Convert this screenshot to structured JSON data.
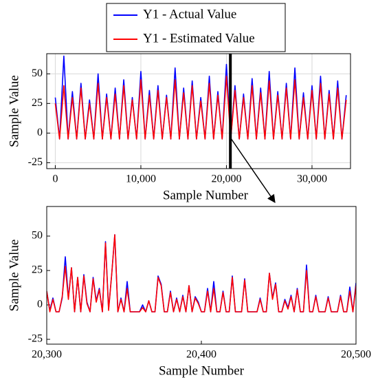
{
  "chart_data": [
    {
      "type": "line",
      "x_label": "Sample Number",
      "y_label": "Sample Value",
      "grid": true,
      "legend": "top",
      "xlim": [
        -1000,
        34500
      ],
      "xticks": [
        0,
        {
          "value": 10000,
          "label": "10,000"
        },
        {
          "value": 20000,
          "label": "20,000"
        },
        {
          "value": 30000,
          "label": "30,000"
        }
      ],
      "ylim": [
        -30,
        67
      ],
      "yticks": [
        -25,
        0,
        25,
        50
      ],
      "x": [
        0,
        500,
        1000,
        1500,
        2000,
        2500,
        3000,
        3500,
        4000,
        4500,
        5000,
        5500,
        6000,
        6500,
        7000,
        7500,
        8000,
        8500,
        9000,
        9500,
        10000,
        10500,
        11000,
        11500,
        12000,
        12500,
        13000,
        13500,
        14000,
        14500,
        15000,
        15500,
        16000,
        16500,
        17000,
        17500,
        18000,
        18500,
        19000,
        19500,
        20000,
        20500,
        21000,
        21500,
        22000,
        22500,
        23000,
        23500,
        24000,
        24500,
        25000,
        25500,
        26000,
        26500,
        27000,
        27500,
        28000,
        28500,
        29000,
        29500,
        30000,
        30500,
        31000,
        31500,
        32000,
        32500,
        33000,
        33500,
        34000
      ],
      "series": [
        {
          "name": "Y1 - Actual Value",
          "color": "#0000ff",
          "values": [
            30,
            -5,
            65,
            -5,
            35,
            -5,
            42,
            -5,
            28,
            -5,
            50,
            -5,
            33,
            -5,
            38,
            -5,
            45,
            -5,
            30,
            -5,
            52,
            -5,
            36,
            -5,
            40,
            -5,
            32,
            -5,
            55,
            -5,
            38,
            -5,
            44,
            -5,
            30,
            -5,
            48,
            -5,
            35,
            -5,
            58,
            -5,
            40,
            -5,
            33,
            -5,
            46,
            -5,
            38,
            -5,
            52,
            -5,
            35,
            -5,
            42,
            -5,
            55,
            -5,
            34,
            -5,
            40,
            -5,
            48,
            -5,
            36,
            -5,
            44,
            -5,
            32
          ]
        },
        {
          "name": "Y1 - Estimated Value",
          "color": "#ff0000",
          "values": [
            25,
            -5,
            40,
            -5,
            30,
            -5,
            38,
            -5,
            25,
            -5,
            42,
            -5,
            30,
            -5,
            33,
            -5,
            40,
            -5,
            28,
            -5,
            45,
            -5,
            32,
            -5,
            36,
            -5,
            30,
            -5,
            45,
            -5,
            34,
            -5,
            40,
            -5,
            27,
            -5,
            42,
            -5,
            32,
            -5,
            48,
            -5,
            36,
            -5,
            30,
            -5,
            40,
            -5,
            34,
            -5,
            44,
            -5,
            32,
            -5,
            38,
            -5,
            45,
            -5,
            30,
            -5,
            36,
            -5,
            42,
            -5,
            33,
            -5,
            38,
            -5,
            28
          ]
        }
      ]
    },
    {
      "type": "line",
      "x_label": "Sample Number",
      "y_label": "Sample Value",
      "grid": false,
      "xlim": [
        20300,
        20500
      ],
      "xticks": [
        {
          "value": 20300,
          "label": "20,300"
        },
        {
          "value": 20400,
          "label": "20,400"
        },
        {
          "value": 20500,
          "label": "20,500"
        }
      ],
      "ylim": [
        -28.5,
        71.5
      ],
      "yticks": [
        -25,
        0,
        25,
        50
      ],
      "x": [
        20300,
        20302,
        20304,
        20306,
        20308,
        20310,
        20312,
        20314,
        20316,
        20318,
        20320,
        20322,
        20324,
        20326,
        20328,
        20330,
        20332,
        20334,
        20336,
        20338,
        20340,
        20342,
        20344,
        20346,
        20348,
        20350,
        20352,
        20354,
        20356,
        20358,
        20360,
        20362,
        20364,
        20366,
        20368,
        20370,
        20372,
        20374,
        20376,
        20378,
        20380,
        20382,
        20384,
        20386,
        20388,
        20390,
        20392,
        20394,
        20396,
        20398,
        20400,
        20402,
        20404,
        20406,
        20408,
        20410,
        20412,
        20414,
        20416,
        20418,
        20420,
        20422,
        20424,
        20426,
        20428,
        20430,
        20432,
        20434,
        20436,
        20438,
        20440,
        20442,
        20444,
        20446,
        20448,
        20450,
        20452,
        20454,
        20456,
        20458,
        20460,
        20462,
        20464,
        20466,
        20468,
        20470,
        20472,
        20474,
        20476,
        20478,
        20480,
        20482,
        20484,
        20486,
        20488,
        20490,
        20492,
        20494,
        20496,
        20498,
        20500
      ],
      "series": [
        {
          "color": "#0000ff",
          "values": [
            10,
            -4,
            5,
            -5,
            -5,
            5,
            35,
            5,
            27,
            -5,
            20,
            -5,
            22,
            2,
            -5,
            20,
            3,
            12,
            -5,
            46,
            -3,
            22,
            51,
            -5,
            5,
            -5,
            17,
            -5,
            -5,
            -5,
            -5,
            0,
            -5,
            3,
            -5,
            -5,
            21,
            15,
            -5,
            -5,
            10,
            -5,
            5,
            -5,
            7,
            -5,
            14,
            -5,
            6,
            2,
            -5,
            -5,
            12,
            -5,
            17,
            -5,
            -5,
            10,
            -5,
            -5,
            21,
            -5,
            -5,
            -5,
            19,
            -5,
            -5,
            -5,
            -5,
            5,
            -5,
            -5,
            23,
            5,
            16,
            -5,
            -5,
            4,
            -2,
            7,
            -5,
            12,
            -5,
            -5,
            29,
            -5,
            -5,
            7,
            -5,
            -5,
            -5,
            6,
            -5,
            -5,
            -5,
            7,
            -5,
            -5,
            13,
            -5,
            16
          ]
        },
        {
          "color": "#ff0000",
          "values": [
            10,
            -5,
            4,
            -5,
            -5,
            6,
            28,
            4,
            27,
            -5,
            20,
            -5,
            21,
            1,
            -5,
            19,
            2,
            11,
            -5,
            45,
            -4,
            22,
            51,
            -5,
            4,
            -5,
            12,
            -5,
            -5,
            -5,
            -5,
            -2,
            -5,
            3,
            -5,
            -5,
            20,
            14,
            -5,
            -5,
            9,
            -5,
            4,
            -5,
            6,
            -5,
            14,
            -5,
            5,
            1,
            -5,
            -5,
            10,
            -5,
            12,
            -5,
            -5,
            9,
            -5,
            -5,
            20,
            -5,
            -5,
            -5,
            18,
            -5,
            -5,
            -5,
            -5,
            4,
            -5,
            -5,
            23,
            4,
            15,
            -5,
            -5,
            3,
            -3,
            6,
            -5,
            11,
            -5,
            -5,
            25,
            -5,
            -5,
            6,
            -5,
            -5,
            -5,
            5,
            -5,
            -5,
            -5,
            6,
            -5,
            -5,
            10,
            -5,
            14
          ]
        }
      ]
    }
  ]
}
